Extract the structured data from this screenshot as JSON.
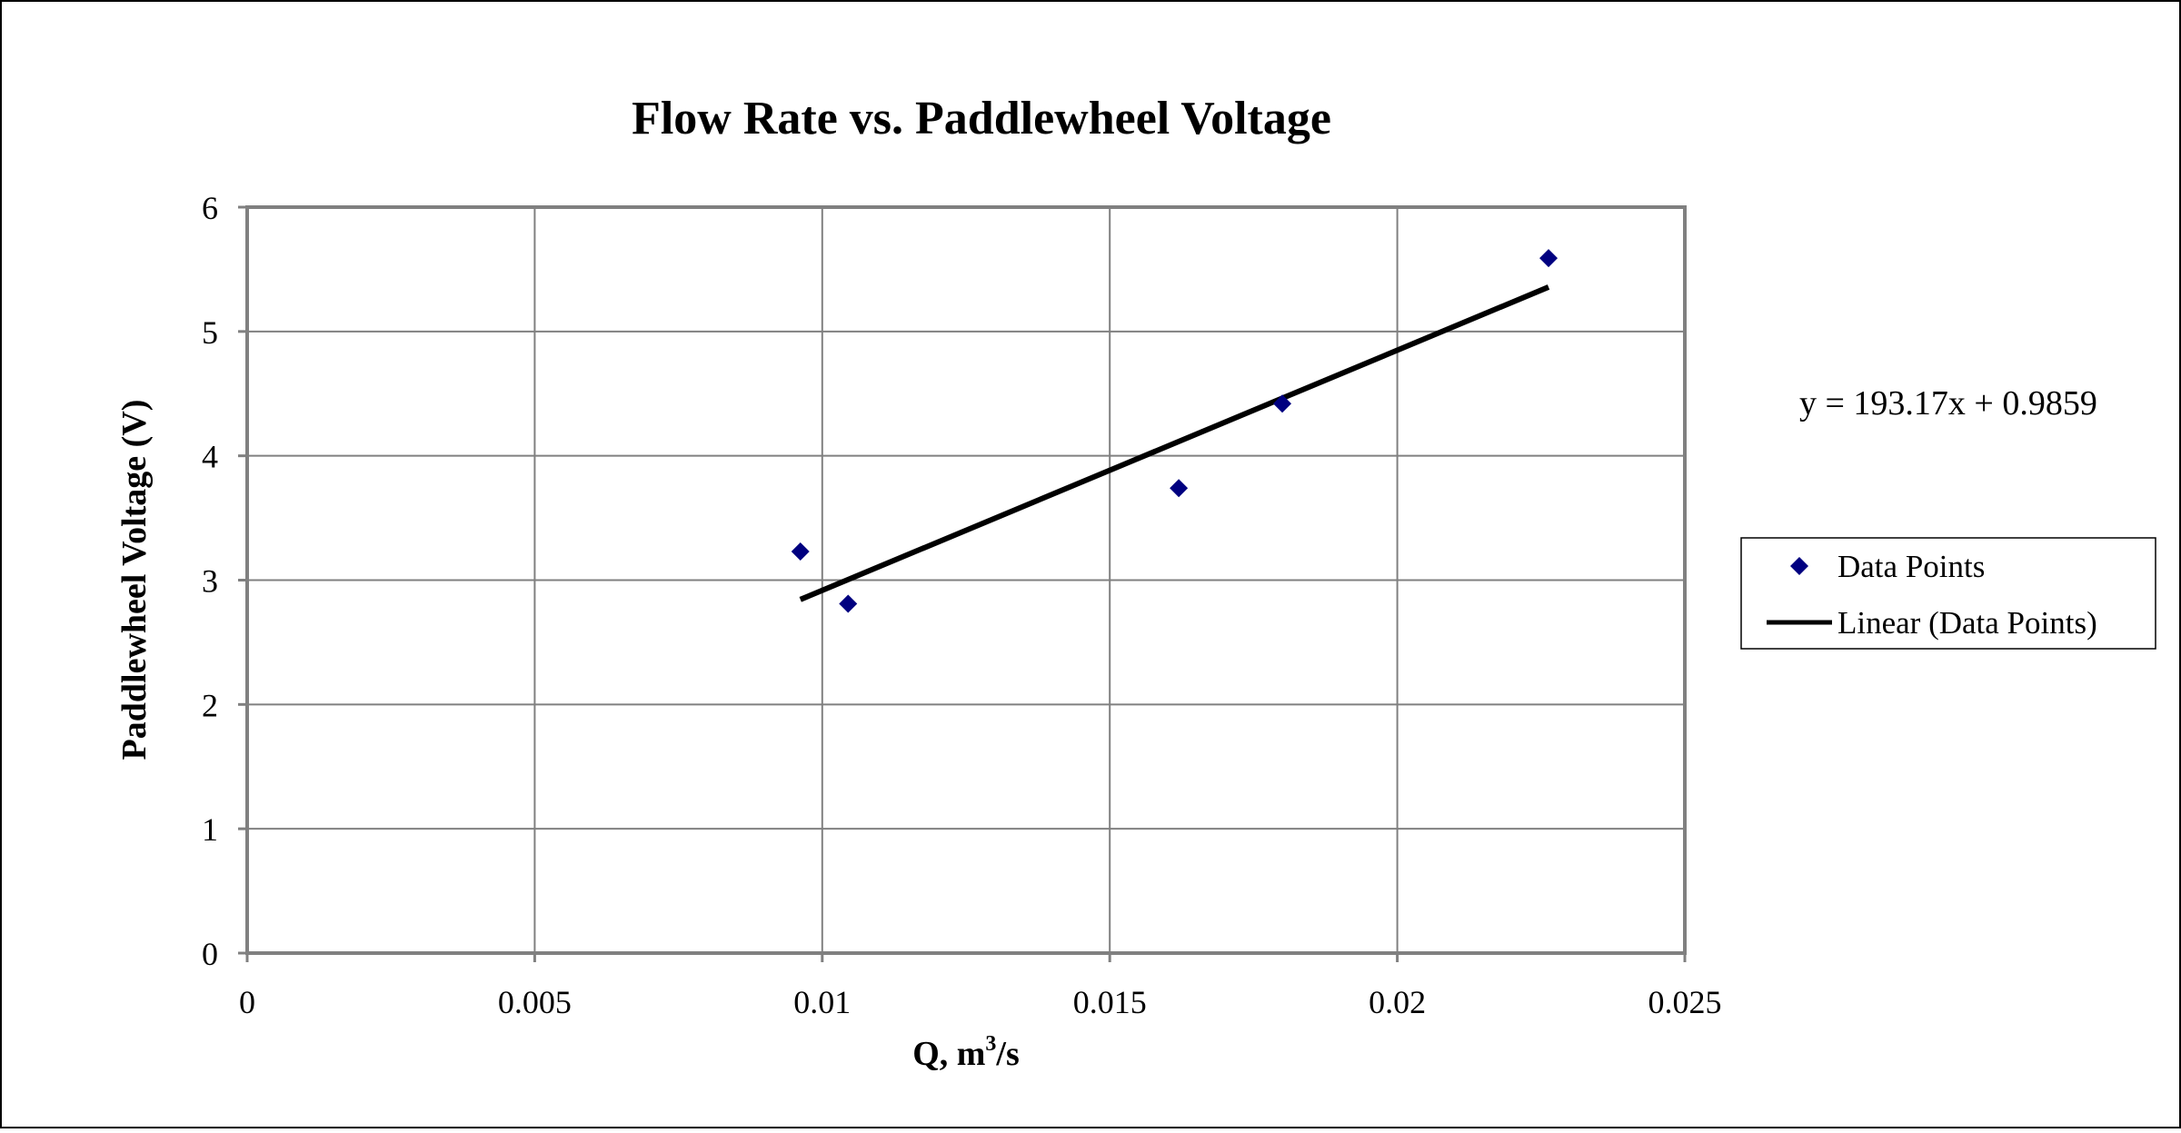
{
  "chart_data": {
    "type": "scatter",
    "title": "Flow Rate vs. Paddlewheel Voltage",
    "xlabel": "Q, m",
    "xlabel_superscript": "3",
    "xlabel_suffix": "/s",
    "ylabel": "Paddlewheel Voltage (V)",
    "xlim": [
      0,
      0.025
    ],
    "ylim": [
      0,
      6
    ],
    "x_ticks": [
      "0",
      "0.005",
      "0.01",
      "0.015",
      "0.02",
      "0.025"
    ],
    "y_ticks": [
      "0",
      "1",
      "2",
      "3",
      "4",
      "5",
      "6"
    ],
    "grid": true,
    "legend_position": "right",
    "series": [
      {
        "name": "Data Points",
        "marker": "diamond",
        "color": "#000080",
        "points": [
          {
            "x": 0.00962,
            "y": 3.23
          },
          {
            "x": 0.01045,
            "y": 2.81
          },
          {
            "x": 0.0162,
            "y": 3.74
          },
          {
            "x": 0.018,
            "y": 4.42
          },
          {
            "x": 0.02263,
            "y": 5.59
          }
        ]
      }
    ],
    "trendline": {
      "name": "Linear (Data Points)",
      "slope": 193.17,
      "intercept": 0.9859,
      "x_range": [
        0.00962,
        0.02263
      ],
      "color": "#000000",
      "equation_label": "y = 193.17x + 0.9859"
    }
  }
}
